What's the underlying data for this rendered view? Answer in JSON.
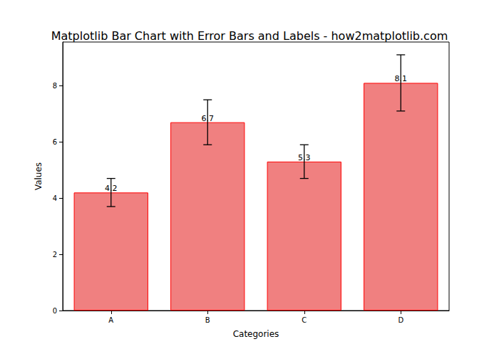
{
  "chart_data": {
    "type": "bar",
    "title": "Matplotlib Bar Chart with Error Bars and Labels - how2matplotlib.com",
    "x_label": "Categories",
    "y_label": "Values",
    "categories": [
      "A",
      "B",
      "C",
      "D"
    ],
    "values": [
      4.2,
      6.7,
      5.3,
      8.1
    ],
    "errors": [
      0.5,
      0.8,
      0.6,
      1.0
    ],
    "color": "#f08080",
    "ylim": [
      0,
      9.555
    ],
    "yticks": [
      0,
      2,
      4,
      6,
      8
    ],
    "grid": false,
    "data_labels": true
  }
}
